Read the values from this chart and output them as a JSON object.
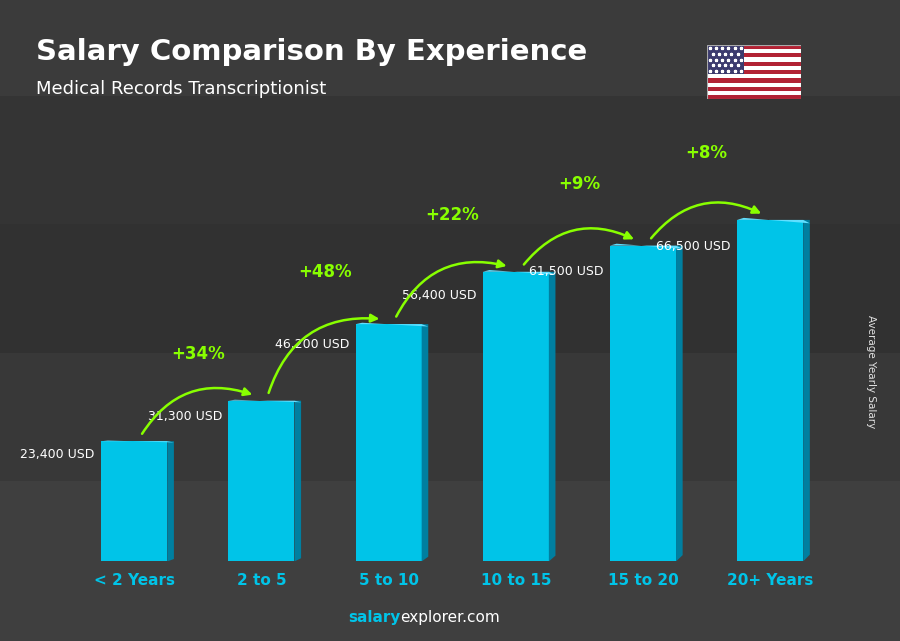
{
  "title": "Salary Comparison By Experience",
  "subtitle": "Medical Records Transcriptionist",
  "categories": [
    "< 2 Years",
    "2 to 5",
    "5 to 10",
    "10 to 15",
    "15 to 20",
    "20+ Years"
  ],
  "values": [
    23400,
    31300,
    46200,
    56400,
    61500,
    66500
  ],
  "value_labels": [
    "23,400 USD",
    "31,300 USD",
    "46,200 USD",
    "56,400 USD",
    "61,500 USD",
    "66,500 USD"
  ],
  "pct_labels": [
    "+34%",
    "+48%",
    "+22%",
    "+9%",
    "+8%"
  ],
  "bar_color_main": "#00C4E8",
  "bar_color_side": "#007FA0",
  "bar_color_top": "#60DFFF",
  "bg_color": "#555555",
  "title_color": "#ffffff",
  "subtitle_color": "#ffffff",
  "category_color": "#00C4E8",
  "value_label_color": "#ffffff",
  "pct_color": "#88FF00",
  "ylabel_text": "Average Yearly Salary",
  "footer_salary": "salary",
  "footer_rest": "explorer.com",
  "footer_salary_color": "#00C4E8",
  "footer_rest_color": "#ffffff"
}
